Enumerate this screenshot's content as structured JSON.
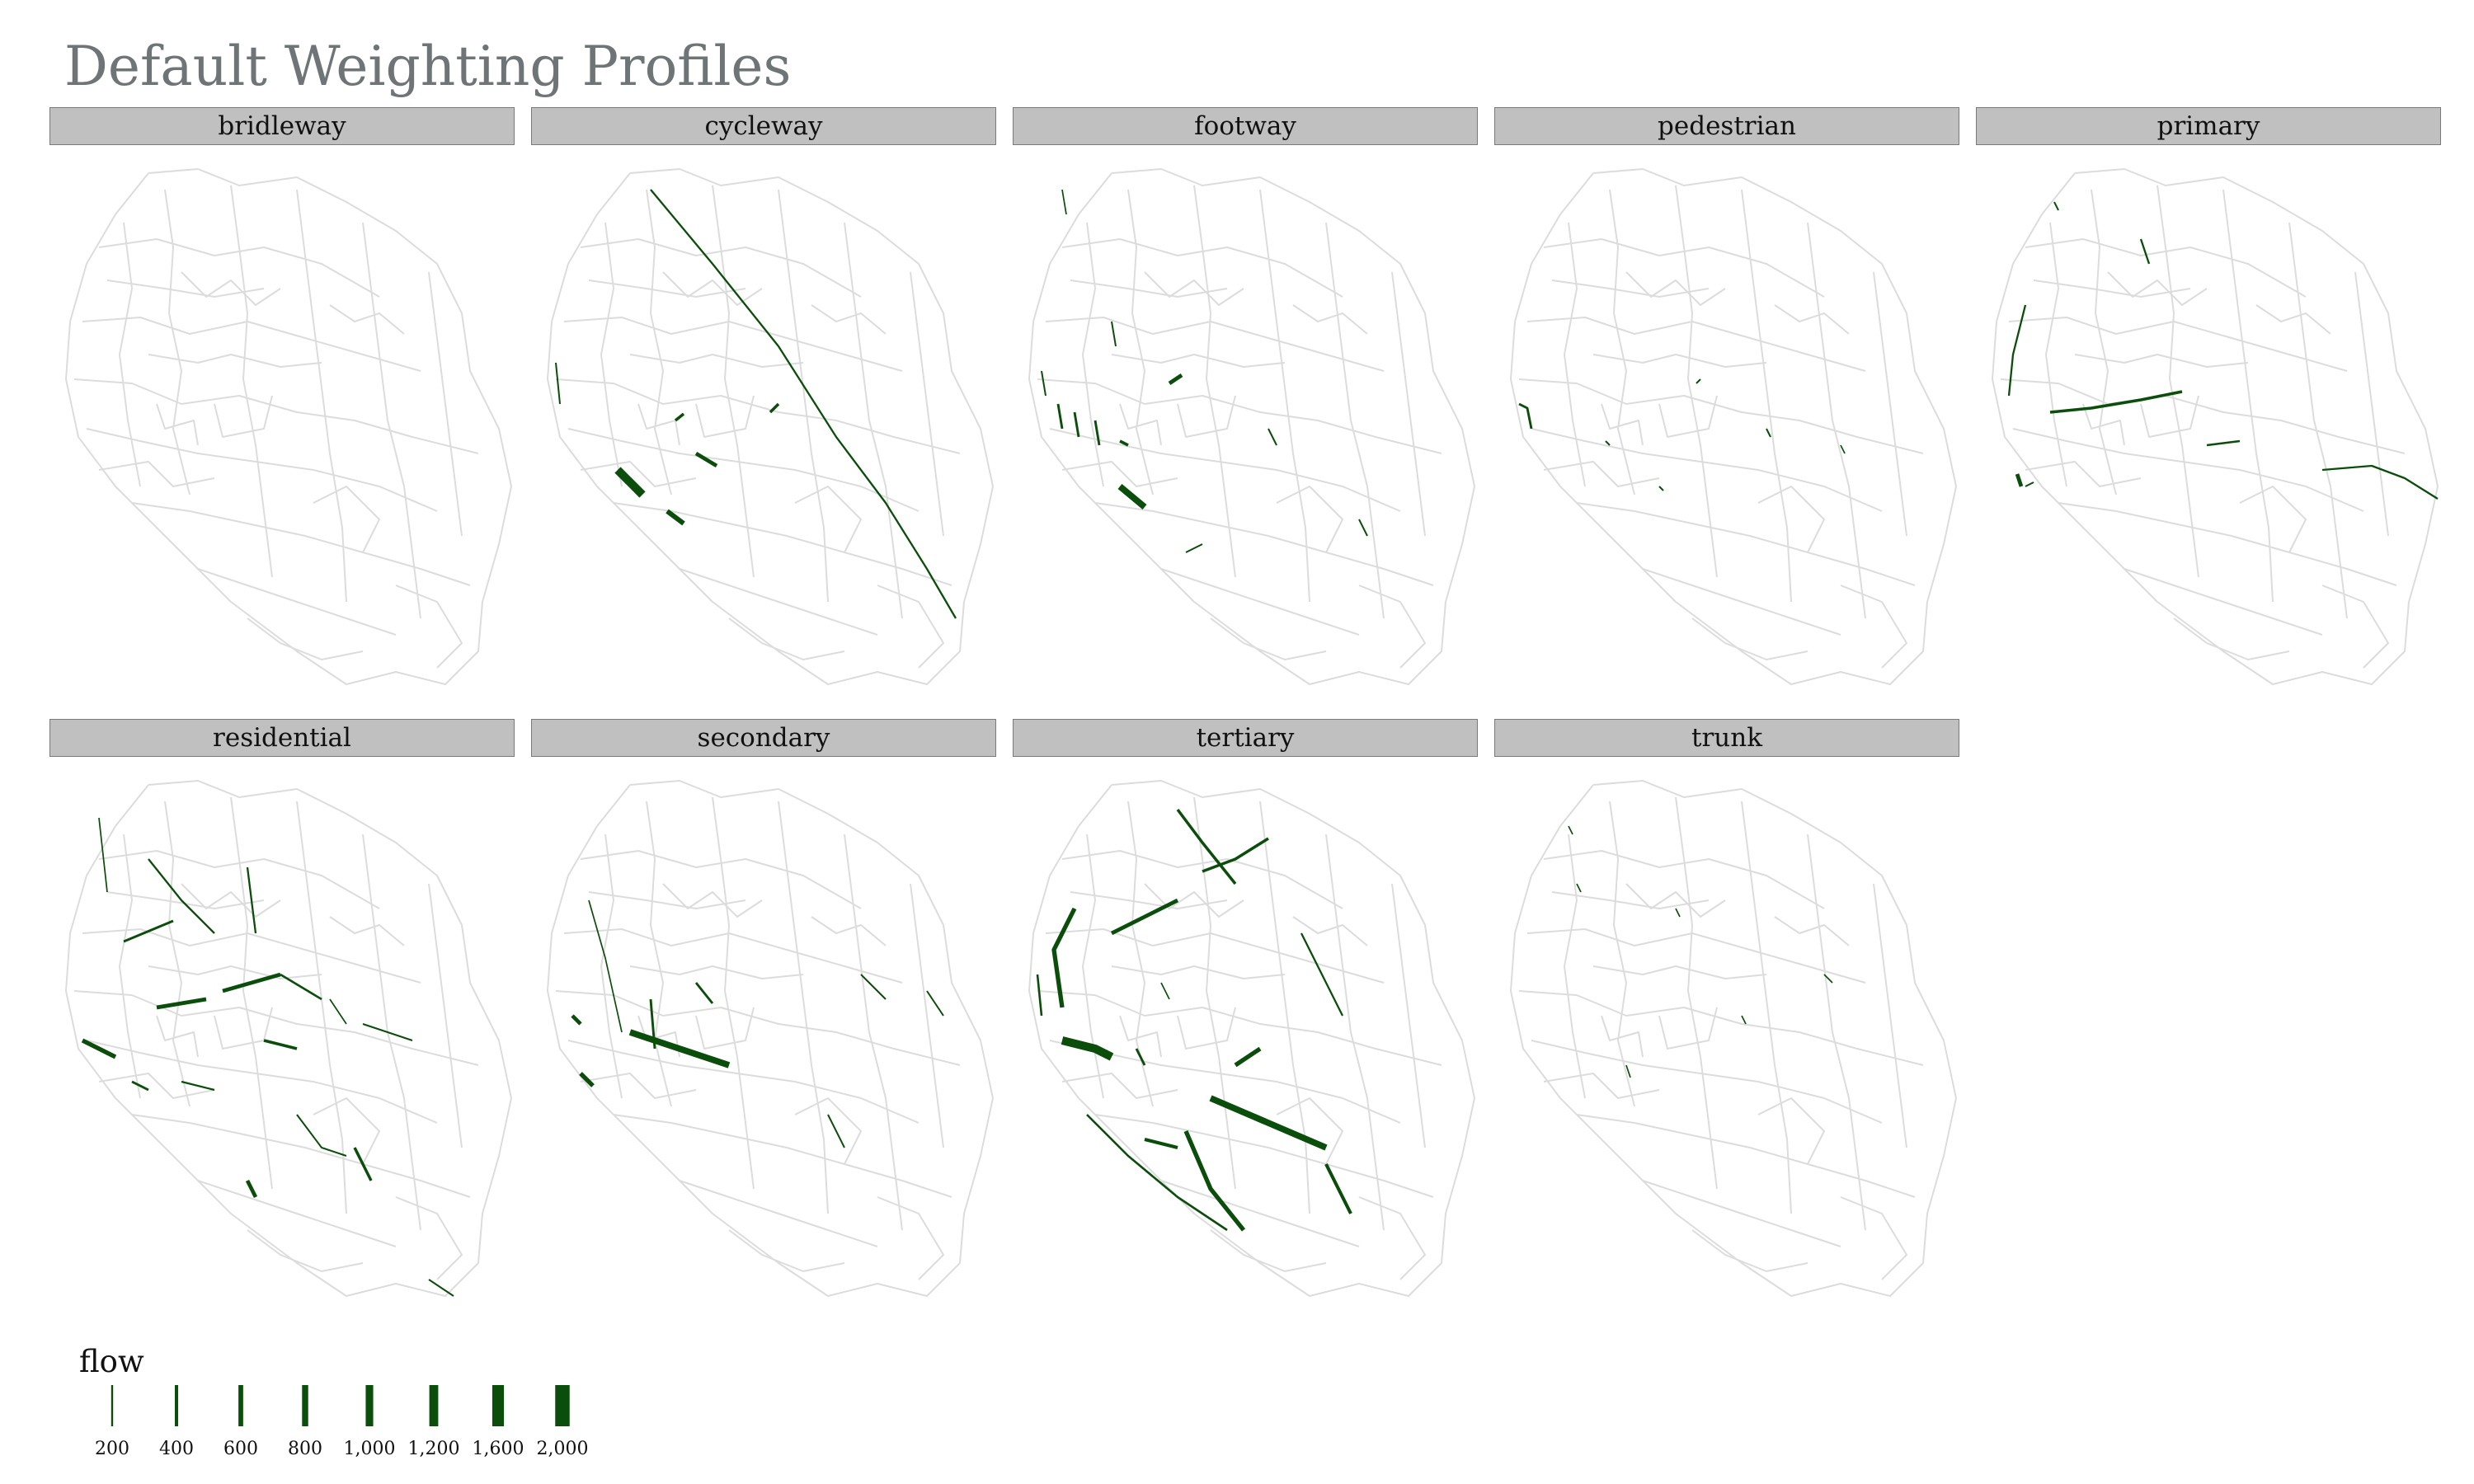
{
  "title": "Default Weighting Profiles",
  "colors": {
    "flow": "#0b4d0b",
    "base_network": "#dcdcdc",
    "strip_bg": "#c0c0c0"
  },
  "panels": [
    {
      "label": "bridleway"
    },
    {
      "label": "cycleway"
    },
    {
      "label": "footway"
    },
    {
      "label": "pedestrian"
    },
    {
      "label": "primary"
    },
    {
      "label": "residential"
    },
    {
      "label": "secondary"
    },
    {
      "label": "tertiary"
    },
    {
      "label": "trunk"
    }
  ],
  "legend": {
    "title": "flow",
    "breaks": [
      200,
      400,
      600,
      800,
      1000,
      1200,
      1600,
      2000
    ],
    "labels": [
      "200",
      "400",
      "600",
      "800",
      "1,000",
      "1,200",
      "1,600",
      "2,000"
    ]
  }
}
